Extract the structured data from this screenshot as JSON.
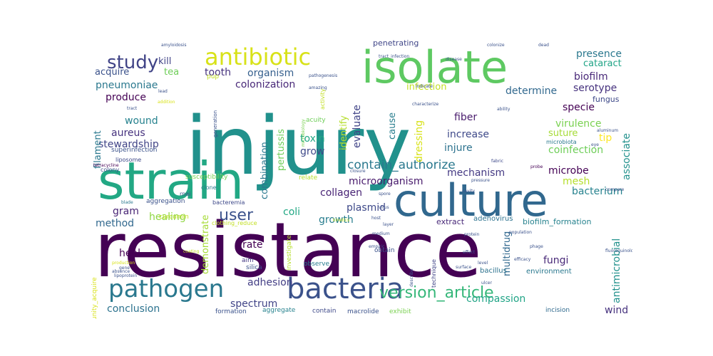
{
  "word_cloud": {
    "background_color": "#ffffff",
    "colormap": "viridis",
    "words": [
      {
        "text": "injury",
        "color": "#21918c"
      },
      {
        "text": "resistance",
        "color": "#440154"
      },
      {
        "text": "strain",
        "color": "#22a884"
      },
      {
        "text": "isolate",
        "color": "#5ec962"
      },
      {
        "text": "culture",
        "color": "#31688e"
      },
      {
        "text": "bacteria",
        "color": "#3b528b"
      },
      {
        "text": "antibiotic",
        "color": "#d8e219"
      },
      {
        "text": "pathogen",
        "color": "#2a788e"
      },
      {
        "text": "study",
        "color": "#414487"
      },
      {
        "text": "version_article",
        "color": "#35b779"
      },
      {
        "text": "user",
        "color": "#3b528b"
      },
      {
        "text": "contain_authorize",
        "color": "#2a788e"
      },
      {
        "text": "colonization",
        "color": "#482878"
      },
      {
        "text": "organism",
        "color": "#355f8d"
      },
      {
        "text": "tooth",
        "color": "#46327e"
      },
      {
        "text": "presence",
        "color": "#2a788e"
      },
      {
        "text": "cataract",
        "color": "#20a486"
      },
      {
        "text": "biofilm",
        "color": "#482878"
      },
      {
        "text": "serotype",
        "color": "#46327e"
      },
      {
        "text": "determine",
        "color": "#31688e"
      },
      {
        "text": "specie",
        "color": "#440154"
      },
      {
        "text": "virulence",
        "color": "#7ad151"
      },
      {
        "text": "suture",
        "color": "#a5db36"
      },
      {
        "text": "tip",
        "color": "#fde725"
      },
      {
        "text": "coinfection",
        "color": "#6ece58"
      },
      {
        "text": "associate",
        "color": "#21918c"
      },
      {
        "text": "microbe",
        "color": "#440154"
      },
      {
        "text": "mesh",
        "color": "#b5de2b"
      },
      {
        "text": "bacterium",
        "color": "#26828e"
      },
      {
        "text": "antimicrobial",
        "color": "#21918c"
      },
      {
        "text": "fungi",
        "color": "#482878"
      },
      {
        "text": "multidrug",
        "color": "#31688e"
      },
      {
        "text": "fiber",
        "color": "#481a6c"
      },
      {
        "text": "increase",
        "color": "#3e4989"
      },
      {
        "text": "injure",
        "color": "#2c728e"
      },
      {
        "text": "mechanism",
        "color": "#443983"
      },
      {
        "text": "microorganism",
        "color": "#481a6c"
      },
      {
        "text": "collagen",
        "color": "#482475"
      },
      {
        "text": "plasmid",
        "color": "#3e4989"
      },
      {
        "text": "growth",
        "color": "#287d8e"
      },
      {
        "text": "coli",
        "color": "#22a884"
      },
      {
        "text": "compassion",
        "color": "#20a486"
      },
      {
        "text": "wind",
        "color": "#46327e"
      },
      {
        "text": "conclusion",
        "color": "#2c728e"
      },
      {
        "text": "spectrum",
        "color": "#414487"
      },
      {
        "text": "adhesion",
        "color": "#433e85"
      },
      {
        "text": "heal",
        "color": "#440154"
      },
      {
        "text": "method",
        "color": "#31688e"
      },
      {
        "text": "gram",
        "color": "#482475"
      },
      {
        "text": "healing",
        "color": "#90d743"
      },
      {
        "text": "wound",
        "color": "#26828e"
      },
      {
        "text": "aureus",
        "color": "#46327e"
      },
      {
        "text": "stewardship",
        "color": "#414487"
      },
      {
        "text": "produce",
        "color": "#440154"
      },
      {
        "text": "pneumoniae",
        "color": "#2a788e"
      },
      {
        "text": "acquire",
        "color": "#3b528b"
      },
      {
        "text": "kill",
        "color": "#414487"
      },
      {
        "text": "tea",
        "color": "#6ece58"
      },
      {
        "text": "filament",
        "color": "#2a788e"
      },
      {
        "text": "toxin",
        "color": "#22a884"
      },
      {
        "text": "grow",
        "color": "#3e4989"
      },
      {
        "text": "identify",
        "color": "#b5de2b"
      },
      {
        "text": "evaluate",
        "color": "#414487"
      },
      {
        "text": "cause",
        "color": "#287d8e"
      },
      {
        "text": "dressing",
        "color": "#d8e219"
      },
      {
        "text": "infection",
        "color": "#c2df23"
      },
      {
        "text": "combination",
        "color": "#2a788e"
      },
      {
        "text": "pertussis",
        "color": "#6ece58"
      },
      {
        "text": "demonstrate",
        "color": "#a5db36"
      },
      {
        "text": "rate",
        "color": "#440154"
      },
      {
        "text": "fungus",
        "color": "#3e4989"
      },
      {
        "text": "penetrating",
        "color": "#404688"
      },
      {
        "text": "extract",
        "color": "#482878"
      },
      {
        "text": "adenovirus",
        "color": "#2c728e"
      },
      {
        "text": "biofilm_formation",
        "color": "#26828e"
      },
      {
        "text": "environment",
        "color": "#2a788e"
      },
      {
        "text": "bacillus",
        "color": "#2c728e"
      },
      {
        "text": "incision",
        "color": "#306a8e"
      },
      {
        "text": "obtain",
        "color": "#3b528b"
      },
      {
        "text": "microbiota",
        "color": "#2a788e"
      },
      {
        "text": "acuity",
        "color": "#6ece58"
      },
      {
        "text": "generation",
        "color": "#3b528b"
      },
      {
        "text": "superinfection",
        "color": "#3b528b"
      },
      {
        "text": "liposome",
        "color": "#3e4989"
      },
      {
        "text": "colony",
        "color": "#3b528b"
      },
      {
        "text": "tetracycline",
        "color": "#440154"
      },
      {
        "text": "susceptibility",
        "color": "#7ad151"
      },
      {
        "text": "relate",
        "color": "#b5de2b"
      },
      {
        "text": "aggregation",
        "color": "#3b528b"
      },
      {
        "text": "curcumin",
        "color": "#c2df23"
      },
      {
        "text": "bacteremia",
        "color": "#3e4989"
      },
      {
        "text": "clone",
        "color": "#2a788e"
      },
      {
        "text": "rnai",
        "color": "#3b528b"
      },
      {
        "text": "blade",
        "color": "#2a788e"
      },
      {
        "text": "clothing_reduce",
        "color": "#c2df23"
      },
      {
        "text": "aim",
        "color": "#443983"
      },
      {
        "text": "silica",
        "color": "#3b528b"
      },
      {
        "text": "investigate",
        "color": "#b5de2b"
      },
      {
        "text": "observe",
        "color": "#287d8e"
      },
      {
        "text": "formation",
        "color": "#3b528b"
      },
      {
        "text": "aggregate",
        "color": "#26828e"
      },
      {
        "text": "contain",
        "color": "#3e4989"
      },
      {
        "text": "macrolide",
        "color": "#3b528b"
      },
      {
        "text": "exhibit",
        "color": "#7ad151"
      },
      {
        "text": "technique",
        "color": "#414487"
      },
      {
        "text": "community_acquire",
        "color": "#d8e219"
      },
      {
        "text": "amyloidosis",
        "color": "#3b528b"
      },
      {
        "text": "colonize",
        "color": "#3b528b"
      },
      {
        "text": "dead",
        "color": "#3b528b"
      },
      {
        "text": "indicate",
        "color": "#3b528b"
      },
      {
        "text": "pup",
        "color": "#c2df23"
      },
      {
        "text": "amazing",
        "color": "#3b528b"
      },
      {
        "text": "activity",
        "color": "#c2df23"
      },
      {
        "text": "microbiology",
        "color": "#7ad151"
      },
      {
        "text": "addition",
        "color": "#d8e219"
      },
      {
        "text": "lead",
        "color": "#3b528b"
      },
      {
        "text": "tract",
        "color": "#3b528b"
      },
      {
        "text": "probe",
        "color": "#440154"
      },
      {
        "text": "aluminum",
        "color": "#3b528b"
      },
      {
        "text": "fabric",
        "color": "#3e4989"
      },
      {
        "text": "closure",
        "color": "#3b528b"
      },
      {
        "text": "cavity",
        "color": "#3b528b"
      },
      {
        "text": "compare",
        "color": "#3b528b"
      },
      {
        "text": "empiric",
        "color": "#3b528b"
      },
      {
        "text": "absence",
        "color": "#3b528b"
      },
      {
        "text": "production",
        "color": "#d8e219"
      },
      {
        "text": "coating",
        "color": "#c2df23"
      },
      {
        "text": "spore",
        "color": "#3b528b"
      },
      {
        "text": "virus",
        "color": "#3b528b"
      },
      {
        "text": "gene",
        "color": "#3b528b"
      },
      {
        "text": "pathogenesis",
        "color": "#3b528b"
      },
      {
        "text": "lipoprotein",
        "color": "#3b528b"
      },
      {
        "text": "phage",
        "color": "#3b528b"
      },
      {
        "text": "kinetics",
        "color": "#c2df23"
      },
      {
        "text": "describe",
        "color": "#3b528b"
      },
      {
        "text": "ability",
        "color": "#3b528b"
      },
      {
        "text": "surface",
        "color": "#3b528b"
      },
      {
        "text": "efficacy",
        "color": "#3b528b"
      },
      {
        "text": "eye",
        "color": "#3b528b"
      },
      {
        "text": "characterize",
        "color": "#3b528b"
      },
      {
        "text": "tract_infection",
        "color": "#3b528b"
      },
      {
        "text": "disease",
        "color": "#3b528b"
      },
      {
        "text": "pressure",
        "color": "#3b528b"
      },
      {
        "text": "ulcer",
        "color": "#3b528b"
      },
      {
        "text": "population",
        "color": "#3b528b"
      },
      {
        "text": "fluoroquinolone",
        "color": "#3b528b"
      },
      {
        "text": "effect",
        "color": "#3b528b"
      },
      {
        "text": "level",
        "color": "#3b528b"
      },
      {
        "text": "protein",
        "color": "#3b528b"
      },
      {
        "text": "layer",
        "color": "#3b528b"
      },
      {
        "text": "medium",
        "color": "#3b528b"
      },
      {
        "text": "host",
        "color": "#3b528b"
      }
    ]
  }
}
